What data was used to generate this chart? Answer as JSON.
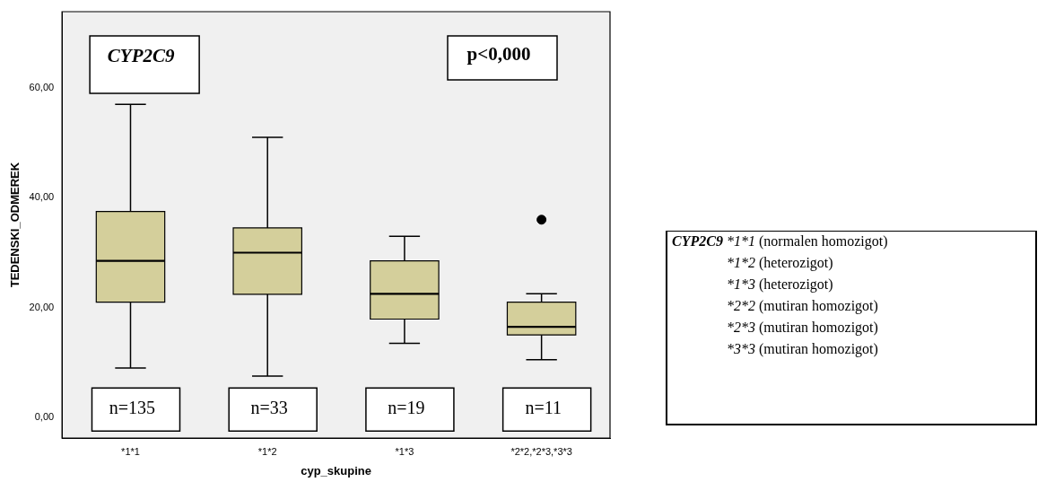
{
  "chart_data": [
    {
      "type": "box",
      "categories": [
        "*1*1",
        "*1*2",
        "*1*3",
        "*2*2,*2*3,*3*3"
      ],
      "xlabel": "cyp_skupine",
      "ylabel": "TEDENSKI_ODMEREK",
      "color": "#d4cf9b",
      "boxes": [
        {
          "low": 9.0,
          "q1": 21.0,
          "median": 28.5,
          "q3": 37.5,
          "high": 57.0
        },
        {
          "low": 7.5,
          "q1": 22.4,
          "median": 30.0,
          "q3": 34.5,
          "high": 51.0
        },
        {
          "low": 13.5,
          "q1": 17.9,
          "median": 22.5,
          "q3": 28.5,
          "high": 33.0
        },
        {
          "low": 10.5,
          "q1": 15.0,
          "median": 16.5,
          "q3": 21.0,
          "high": 22.5,
          "outliers": [
            36.0
          ]
        }
      ],
      "ylim": [
        -3.8,
        73.9
      ],
      "yticks": [
        {
          "value": 0,
          "label": "0,00"
        },
        {
          "value": 20,
          "label": "20,00"
        },
        {
          "value": 40,
          "label": "40,00"
        },
        {
          "value": 60,
          "label": "60,00"
        }
      ],
      "annotations": [
        "CYP2C9",
        "p<0,000",
        "n=135",
        "n=33",
        "n=19",
        "n=11"
      ]
    },
    {
      "type": "other",
      "title": "CYP2C9",
      "annotations": [
        "*1*1 (normalen homozigot)",
        "*1*2 (heterozigot)",
        "*1*3 (heterozigot)",
        "*2*2 (mutiran homozigot)",
        "*2*3 (mutiran homozigot)",
        "*3*3 (mutiran homozigot)"
      ]
    }
  ]
}
